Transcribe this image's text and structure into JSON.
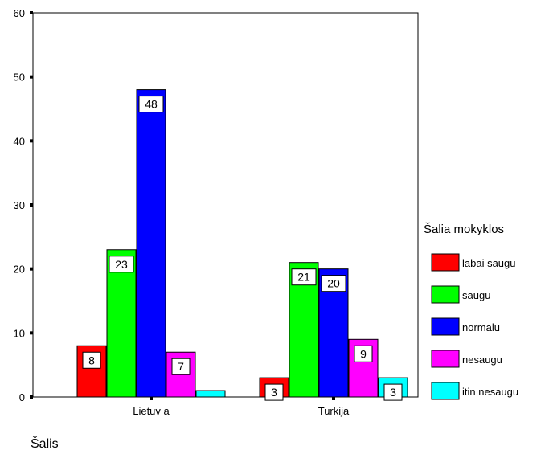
{
  "chart_data": {
    "type": "bar",
    "xlabel": "Šalis",
    "ylabel": "",
    "ylim": [
      0,
      60
    ],
    "yticks": [
      0,
      10,
      20,
      30,
      40,
      50,
      60
    ],
    "categories": [
      "Lietuv a",
      "Turkija"
    ],
    "legend_title": "Šalia mokyklos",
    "legend_position": "right",
    "grid": false,
    "series": [
      {
        "name": "labai saugu",
        "color": "#ff0000",
        "values": [
          8,
          3
        ]
      },
      {
        "name": "saugu",
        "color": "#00ff00",
        "values": [
          23,
          21
        ]
      },
      {
        "name": "normalu",
        "color": "#0000ff",
        "values": [
          48,
          20
        ]
      },
      {
        "name": "nesaugu",
        "color": "#ff00ff",
        "values": [
          7,
          9
        ]
      },
      {
        "name": "itin nesaugu",
        "color": "#00ffff",
        "values": [
          1,
          3
        ]
      }
    ],
    "data_labels": [
      {
        "series": 0,
        "category": 0,
        "text": "8"
      },
      {
        "series": 1,
        "category": 0,
        "text": "23"
      },
      {
        "series": 2,
        "category": 0,
        "text": "48"
      },
      {
        "series": 3,
        "category": 0,
        "text": "7"
      },
      {
        "series": 0,
        "category": 1,
        "text": "3"
      },
      {
        "series": 1,
        "category": 1,
        "text": "21"
      },
      {
        "series": 2,
        "category": 1,
        "text": "20"
      },
      {
        "series": 3,
        "category": 1,
        "text": "9"
      },
      {
        "series": 4,
        "category": 1,
        "text": "3"
      }
    ]
  }
}
